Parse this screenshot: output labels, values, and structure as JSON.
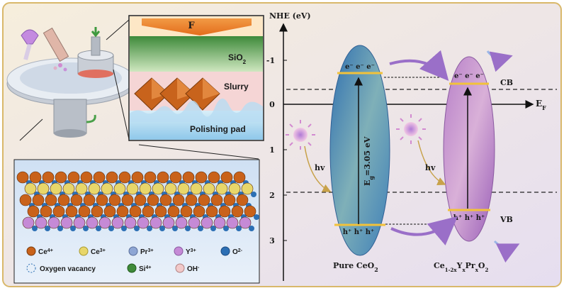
{
  "colors": {
    "background": "#f3ecd8",
    "border": "#d9b86a",
    "ceo2_band": "#4a8fc4",
    "doped_band": "#c08ad0",
    "level_line": "#f2c23a",
    "ce4": "#c9621a",
    "ce3": "#e8d66a",
    "pr3": "#8ea6d4",
    "y3": "#c58ad6",
    "o2": "#2c6fb4",
    "si4": "#3f8a3a",
    "oh": "#f2c9c9"
  },
  "polishing": {
    "force_label": "F",
    "layer_sio2": "SiO",
    "layer_sio2_sub": "2",
    "layer_slurry": "Slurry",
    "layer_pad": "Polishing pad"
  },
  "legend": {
    "ce4": "Ce",
    "ce4_sup": "4+",
    "ce3": "Ce",
    "ce3_sup": "3+",
    "pr3": "Pr",
    "pr3_sup": "3+",
    "y3": "Y",
    "y3_sup": "3+",
    "o2": "O",
    "o2_sup": "2-",
    "vacancy": "Oxygen vacancy",
    "si4": "Si",
    "si4_sup": "4+",
    "oh": "OH",
    "oh_sup": "-"
  },
  "energy": {
    "axis_title": "NHE (eV)",
    "ticks": [
      "-1",
      "0",
      "1",
      "2",
      "3"
    ],
    "ef_label": "E",
    "ef_sub": "F",
    "cb_label": "CB",
    "vb_label": "VB",
    "hv_left": "hv",
    "hv_right": "hv",
    "electrons": "e⁻ e⁻ e⁻",
    "holes": "h⁺ h⁺ h⁺",
    "bandgap_prefix": "E",
    "bandgap_sub": "g",
    "bandgap_value": "=3.05 eV",
    "pure_label": "Pure CeO",
    "pure_sub": "2",
    "doped_ce": "Ce",
    "doped_ce_sub": "1-2x",
    "doped_y": "Y",
    "doped_y_sub": "x",
    "doped_pr": "Pr",
    "doped_pr_sub": "x",
    "doped_o": "O",
    "doped_o_sub": "2"
  }
}
